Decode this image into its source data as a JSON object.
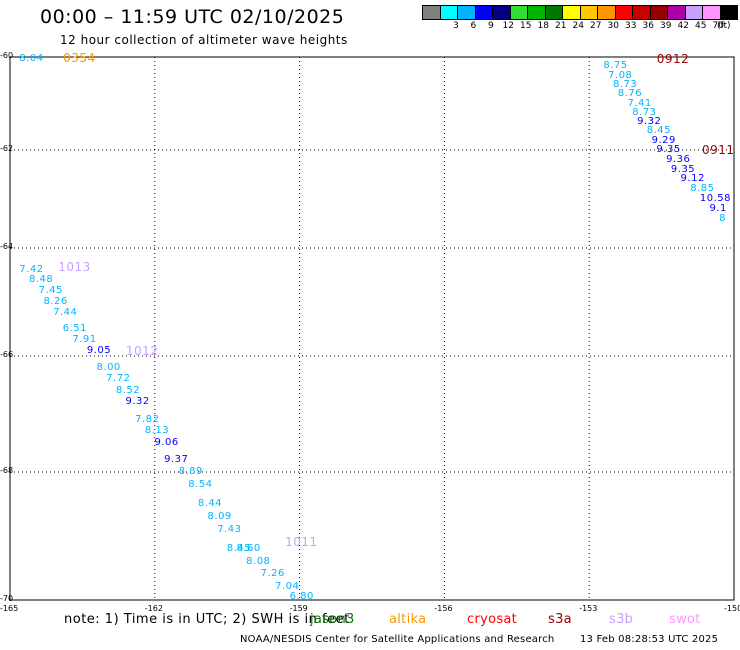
{
  "header": {
    "title": "00:00 – 11:59 UTC 02/10/2025",
    "subtitle": "12 hour collection of altimeter wave heights"
  },
  "colorbar": {
    "unit_label": "(ft)",
    "items": [
      {
        "color": "#808080",
        "label": ""
      },
      {
        "color": "#00ffff",
        "label": "3"
      },
      {
        "color": "#00b4ff",
        "label": "6"
      },
      {
        "color": "#0000ff",
        "label": "9"
      },
      {
        "color": "#000080",
        "label": "12"
      },
      {
        "color": "#33dd33",
        "label": "15"
      },
      {
        "color": "#00b400",
        "label": "18"
      },
      {
        "color": "#007800",
        "label": "21"
      },
      {
        "color": "#ffff00",
        "label": "24"
      },
      {
        "color": "#ffc800",
        "label": "27"
      },
      {
        "color": "#ff9600",
        "label": "30"
      },
      {
        "color": "#ff0000",
        "label": "33"
      },
      {
        "color": "#c80000",
        "label": "36"
      },
      {
        "color": "#960000",
        "label": "39"
      },
      {
        "color": "#aa00aa",
        "label": "42"
      },
      {
        "color": "#c8a0ff",
        "label": "45"
      },
      {
        "color": "#ff96ff",
        "label": "70"
      },
      {
        "color": "#000000",
        "label": ""
      }
    ]
  },
  "axes": {
    "y_labels": [
      "-60",
      "-62",
      "-64",
      "-66",
      "-68",
      "-70"
    ],
    "x_labels": [
      "-165",
      "-162",
      "-159",
      "-156",
      "-153",
      "-150"
    ],
    "grid": "dotted"
  },
  "passes": [
    {
      "label": "0354",
      "color": "#ff9600"
    },
    {
      "label": "0912",
      "color": "#960000"
    },
    {
      "label": "0911",
      "color": "#960000"
    },
    {
      "label": "1013",
      "color": "#c8a0ff"
    },
    {
      "label": "1012",
      "color": "#c8a0ff"
    },
    {
      "label": "1011",
      "color": "#c8a0ff"
    }
  ],
  "chart_data": {
    "type": "scatter",
    "title": "00:00 – 11:59 UTC 02/10/2025",
    "subtitle": "12 hour collection of altimeter wave heights",
    "unit": "ft",
    "xlim": [
      -165,
      -150
    ],
    "ylim": [
      -70,
      -60
    ],
    "series": [
      {
        "name": "0354",
        "values": [
          {
            "lon": -164.6,
            "lat": -60.05,
            "swh": "8.04",
            "color": "#00b4ff"
          }
        ]
      },
      {
        "name": "0912",
        "values": [
          {
            "lon": -152.5,
            "lat": -60.2,
            "swh": "8.75",
            "color": "#00b4ff"
          },
          {
            "lon": -152.4,
            "lat": -60.4,
            "swh": "7.08",
            "color": "#00b4ff"
          },
          {
            "lon": -152.3,
            "lat": -60.6,
            "swh": "8.73",
            "color": "#00b4ff"
          },
          {
            "lon": -152.2,
            "lat": -60.8,
            "swh": "8.76",
            "color": "#00b4ff"
          },
          {
            "lon": -152.0,
            "lat": -61.0,
            "swh": "7.41",
            "color": "#00b4ff"
          },
          {
            "lon": -151.9,
            "lat": -61.2,
            "swh": "8.73",
            "color": "#00b4ff"
          },
          {
            "lon": -151.8,
            "lat": -61.4,
            "swh": "9.32",
            "color": "#0000ff"
          },
          {
            "lon": -151.6,
            "lat": -61.6,
            "swh": "8.45",
            "color": "#00b4ff"
          },
          {
            "lon": -151.5,
            "lat": -61.8,
            "swh": "9.29",
            "color": "#0000ff"
          }
        ]
      },
      {
        "name": "0911",
        "values": [
          {
            "lon": -151.4,
            "lat": -62.0,
            "swh": "9.35",
            "color": "#0000ff"
          },
          {
            "lon": -151.2,
            "lat": -62.2,
            "swh": "9.36",
            "color": "#0000ff"
          },
          {
            "lon": -151.1,
            "lat": -62.4,
            "swh": "9.35",
            "color": "#0000ff"
          },
          {
            "lon": -150.9,
            "lat": -62.6,
            "swh": "9.12",
            "color": "#0000ff"
          },
          {
            "lon": -150.7,
            "lat": -62.8,
            "swh": "8.85",
            "color": "#00b4ff"
          },
          {
            "lon": -150.5,
            "lat": -63.0,
            "swh": "10.58",
            "color": "#0000ff"
          },
          {
            "lon": -150.3,
            "lat": -63.2,
            "swh": "9.1",
            "color": "#0000ff"
          },
          {
            "lon": -150.1,
            "lat": -63.4,
            "swh": "8",
            "color": "#00b4ff"
          }
        ]
      },
      {
        "name": "1013",
        "values": [
          {
            "lon": -164.6,
            "lat": -64.4,
            "swh": "7.42",
            "color": "#00b4ff"
          },
          {
            "lon": -164.4,
            "lat": -64.6,
            "swh": "8.48",
            "color": "#00b4ff"
          },
          {
            "lon": -164.2,
            "lat": -64.8,
            "swh": "7.45",
            "color": "#00b4ff"
          },
          {
            "lon": -164.1,
            "lat": -65.0,
            "swh": "8.26",
            "color": "#00b4ff"
          },
          {
            "lon": -163.9,
            "lat": -65.2,
            "swh": "7.44",
            "color": "#00b4ff"
          },
          {
            "lon": -163.7,
            "lat": -65.5,
            "swh": "6.51",
            "color": "#00b4ff"
          },
          {
            "lon": -163.5,
            "lat": -65.7,
            "swh": "7.91",
            "color": "#00b4ff"
          }
        ]
      },
      {
        "name": "1012",
        "values": [
          {
            "lon": -163.2,
            "lat": -65.9,
            "swh": "9.05",
            "color": "#0000ff"
          },
          {
            "lon": -163.0,
            "lat": -66.2,
            "swh": "8.00",
            "color": "#00b4ff"
          },
          {
            "lon": -162.8,
            "lat": -66.4,
            "swh": "7.72",
            "color": "#00b4ff"
          },
          {
            "lon": -162.6,
            "lat": -66.6,
            "swh": "8.52",
            "color": "#00b4ff"
          },
          {
            "lon": -162.4,
            "lat": -66.8,
            "swh": "9.32",
            "color": "#0000ff"
          },
          {
            "lon": -162.2,
            "lat": -67.1,
            "swh": "7.82",
            "color": "#00b4ff"
          },
          {
            "lon": -162.0,
            "lat": -67.3,
            "swh": "8.13",
            "color": "#00b4ff"
          },
          {
            "lon": -161.8,
            "lat": -67.5,
            "swh": "9.06",
            "color": "#0000ff"
          },
          {
            "lon": -161.6,
            "lat": -67.8,
            "swh": "9.37",
            "color": "#0000ff"
          },
          {
            "lon": -161.3,
            "lat": -68.0,
            "swh": "8.89",
            "color": "#00b4ff"
          },
          {
            "lon": -161.1,
            "lat": -68.2,
            "swh": "8.54",
            "color": "#00b4ff"
          },
          {
            "lon": -160.9,
            "lat": -68.5,
            "swh": "8.44",
            "color": "#00b4ff"
          },
          {
            "lon": -160.7,
            "lat": -68.7,
            "swh": "8.09",
            "color": "#00b4ff"
          },
          {
            "lon": -160.5,
            "lat": -68.9,
            "swh": "7.43",
            "color": "#00b4ff"
          },
          {
            "lon": -160.3,
            "lat": -69.2,
            "swh": "8.45",
            "color": "#00b4ff"
          }
        ]
      },
      {
        "name": "1011",
        "values": [
          {
            "lon": -160.1,
            "lat": -69.2,
            "swh": "8.60",
            "color": "#00b4ff"
          },
          {
            "lon": -159.9,
            "lat": -69.4,
            "swh": "8.08",
            "color": "#00b4ff"
          },
          {
            "lon": -159.6,
            "lat": -69.6,
            "swh": "7.26",
            "color": "#00b4ff"
          },
          {
            "lon": -159.3,
            "lat": -69.8,
            "swh": "7.04",
            "color": "#00b4ff"
          },
          {
            "lon": -159.0,
            "lat": -69.95,
            "swh": "6.80",
            "color": "#00b4ff"
          }
        ]
      }
    ]
  },
  "footer": {
    "note": "note: 1) Time is in UTC; 2) SWH is in feet",
    "satellites": [
      {
        "label": "jason3",
        "color": "#007800"
      },
      {
        "label": "altika",
        "color": "#ff9600"
      },
      {
        "label": "cryosat",
        "color": "#ff0000"
      },
      {
        "label": "s3a",
        "color": "#960000"
      },
      {
        "label": "s3b",
        "color": "#c8a0ff"
      },
      {
        "label": "swot",
        "color": "#ff96ff"
      }
    ],
    "credit": "NOAA/NESDIS Center for Satellite Applications and Research",
    "timestamp": "13 Feb 08:28:53 UTC 2025"
  }
}
